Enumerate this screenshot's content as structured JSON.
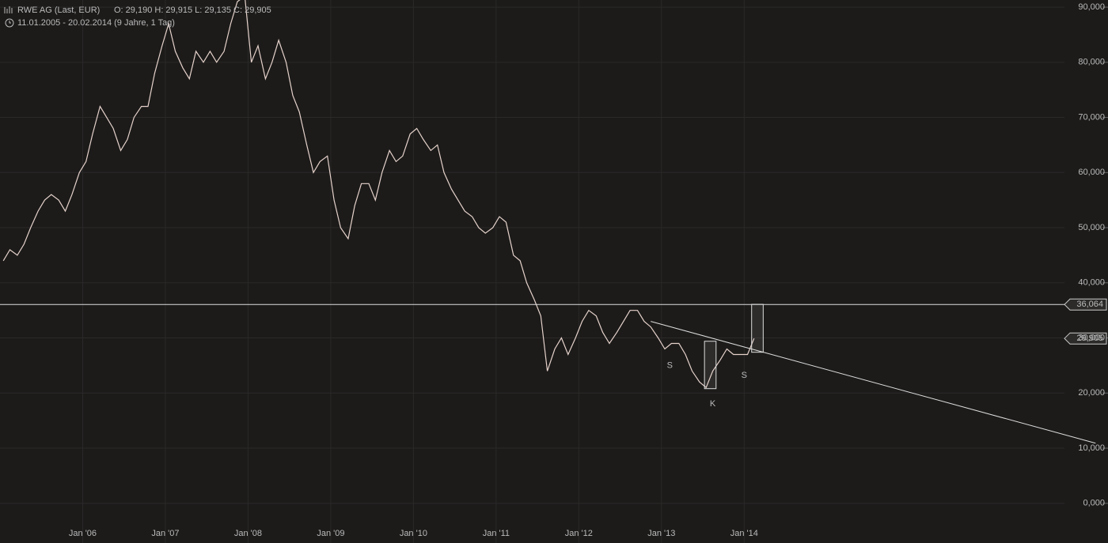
{
  "chart_data": {
    "type": "line",
    "title": "RWE AG (Last, EUR)",
    "ohlc": "O: 29,190  H: 29,915  L: 29,135  C: 29,905",
    "subtitle": "11.01.2005 - 20.02.2014 (9 Jahre, 1 Tag)",
    "x": [
      2005.04,
      2005.12,
      2005.21,
      2005.29,
      2005.37,
      2005.46,
      2005.54,
      2005.62,
      2005.71,
      2005.79,
      2005.87,
      2005.96,
      2006.04,
      2006.12,
      2006.21,
      2006.29,
      2006.37,
      2006.46,
      2006.54,
      2006.62,
      2006.71,
      2006.79,
      2006.87,
      2006.96,
      2007.04,
      2007.12,
      2007.21,
      2007.29,
      2007.37,
      2007.46,
      2007.54,
      2007.62,
      2007.71,
      2007.79,
      2007.87,
      2007.96,
      2008.04,
      2008.12,
      2008.21,
      2008.29,
      2008.37,
      2008.46,
      2008.54,
      2008.62,
      2008.71,
      2008.79,
      2008.87,
      2008.96,
      2009.04,
      2009.12,
      2009.21,
      2009.29,
      2009.37,
      2009.46,
      2009.54,
      2009.62,
      2009.71,
      2009.79,
      2009.87,
      2009.96,
      2010.04,
      2010.12,
      2010.21,
      2010.29,
      2010.37,
      2010.46,
      2010.54,
      2010.62,
      2010.71,
      2010.79,
      2010.87,
      2010.96,
      2011.04,
      2011.12,
      2011.21,
      2011.29,
      2011.37,
      2011.46,
      2011.54,
      2011.62,
      2011.71,
      2011.79,
      2011.87,
      2011.96,
      2012.04,
      2012.12,
      2012.21,
      2012.29,
      2012.37,
      2012.46,
      2012.54,
      2012.62,
      2012.71,
      2012.79,
      2012.87,
      2012.96,
      2013.04,
      2013.12,
      2013.21,
      2013.29,
      2013.37,
      2013.46,
      2013.54,
      2013.62,
      2013.71,
      2013.79,
      2013.87,
      2013.96,
      2014.04,
      2014.12
    ],
    "series": [
      {
        "name": "RWE AG",
        "color": "#e6d2cb",
        "values": [
          44,
          46,
          45,
          47,
          50,
          53,
          55,
          56,
          55,
          53,
          56,
          60,
          62,
          67,
          72,
          70,
          68,
          64,
          66,
          70,
          72,
          72,
          78,
          83,
          87,
          82,
          79,
          77,
          82,
          80,
          82,
          80,
          82,
          87,
          91,
          92,
          80,
          83,
          77,
          80,
          84,
          80,
          74,
          71,
          65,
          60,
          62,
          63,
          55,
          50,
          48,
          54,
          58,
          58,
          55,
          60,
          64,
          62,
          63,
          67,
          68,
          66,
          64,
          65,
          60,
          57,
          55,
          53,
          52,
          50,
          49,
          50,
          52,
          51,
          45,
          44,
          40,
          37,
          34,
          24,
          28,
          30,
          27,
          30,
          33,
          35,
          34,
          31,
          29,
          31,
          33,
          35,
          35,
          33,
          32,
          30,
          28,
          29,
          29,
          27,
          24,
          22,
          21,
          24,
          26,
          28,
          27,
          27,
          27,
          29.905
        ]
      }
    ],
    "xlim": [
      2005.0,
      2018.4
    ],
    "ylim": [
      -7.2,
      91.3
    ],
    "xticks": [
      {
        "value": 2006,
        "label": "Jan '06"
      },
      {
        "value": 2007,
        "label": "Jan '07"
      },
      {
        "value": 2008,
        "label": "Jan '08"
      },
      {
        "value": 2009,
        "label": "Jan '09"
      },
      {
        "value": 2010,
        "label": "Jan '10"
      },
      {
        "value": 2011,
        "label": "Jan '11"
      },
      {
        "value": 2012,
        "label": "Jan '12"
      },
      {
        "value": 2013,
        "label": "Jan '13"
      },
      {
        "value": 2014,
        "label": "Jan '14"
      }
    ],
    "yticks": [
      {
        "value": 0,
        "label": "0,000"
      },
      {
        "value": 10,
        "label": "10,000"
      },
      {
        "value": 20,
        "label": "20,000"
      },
      {
        "value": 30,
        "label": "30,000"
      },
      {
        "value": 40,
        "label": "40,000"
      },
      {
        "value": 50,
        "label": "50,000"
      },
      {
        "value": 60,
        "label": "60,000"
      },
      {
        "value": 70,
        "label": "70,000"
      },
      {
        "value": 80,
        "label": "80,000"
      },
      {
        "value": 90,
        "label": "90,000"
      }
    ],
    "grid": true,
    "hline": {
      "value": 36.064,
      "label": "36,064"
    },
    "last": {
      "value": 29.905,
      "label": "29,905"
    },
    "trendline": {
      "x": [
        2012.87,
        2018.25
      ],
      "y": [
        33,
        10.9
      ]
    },
    "boxes": [
      {
        "x": [
          2013.52,
          2013.66
        ],
        "y": [
          20.8,
          29.4
        ]
      },
      {
        "x": [
          2014.09,
          2014.23
        ],
        "y": [
          27.4,
          36.1
        ]
      }
    ],
    "annotations": [
      {
        "text": "S",
        "x": 2013.1,
        "y": 25
      },
      {
        "text": "K",
        "x": 2013.62,
        "y": 18
      },
      {
        "text": "S",
        "x": 2014.0,
        "y": 23.2
      }
    ]
  }
}
